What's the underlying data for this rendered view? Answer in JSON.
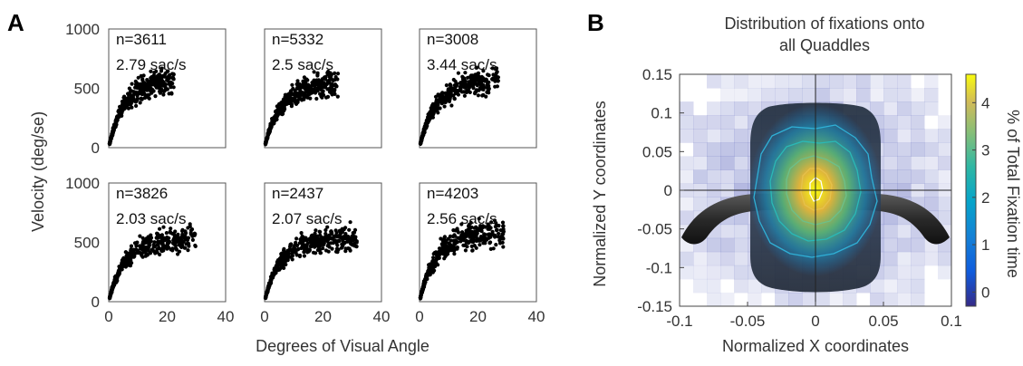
{
  "panel_labels": {
    "a": "A",
    "b": "B"
  },
  "panel_a": {
    "ylabel": "Velocity (deg/se)",
    "xlabel": "Degrees of Visual Angle",
    "y_ticks": [
      "0",
      "500",
      "1000"
    ],
    "x_ticks": [
      "0",
      "20",
      "40"
    ]
  },
  "panel_b": {
    "title_line1": "Distribution of fixations onto",
    "title_line2": "all Quaddles",
    "xlabel": "Normalized X coordinates",
    "ylabel": "Normalized Y coordinates",
    "colorbar_label": "% of  Total Fixation time",
    "x_ticks": [
      "-0.1",
      "-0.05",
      "0",
      "0.05",
      "0.1"
    ],
    "y_ticks": [
      "0.15",
      "0.1",
      "0.05",
      "0",
      "-0.05",
      "-0.1",
      "-0.15"
    ],
    "colorbar_ticks": [
      "0",
      "1",
      "2",
      "3",
      "4"
    ]
  },
  "chart_data": [
    {
      "type": "scatter",
      "title": "",
      "xlabel": "Degrees of Visual Angle",
      "ylabel": "Velocity (deg/se)",
      "xlim": [
        0,
        40
      ],
      "ylim": [
        0,
        1000
      ],
      "subplots": [
        {
          "n_label": "n=3611",
          "rate_label": "2.79 sac/s",
          "n": 3611,
          "rate": 2.79,
          "max_x": 24,
          "vmax": 520,
          "color": "#000000"
        },
        {
          "n_label": "n=5332",
          "rate_label": "2.5 sac/s",
          "n": 5332,
          "rate": 2.5,
          "max_x": 27,
          "vmax": 480,
          "color": "#000000"
        },
        {
          "n_label": "n=3008",
          "rate_label": "3.44 sac/s",
          "n": 3008,
          "rate": 3.44,
          "max_x": 29,
          "vmax": 500,
          "color": "#000000"
        },
        {
          "n_label": "n=3826",
          "rate_label": "2.03 sac/s",
          "n": 3826,
          "rate": 2.03,
          "max_x": 32,
          "vmax": 470,
          "color": "#000000"
        },
        {
          "n_label": "n=2437",
          "rate_label": "2.07 sac/s",
          "n": 2437,
          "rate": 2.07,
          "max_x": 34,
          "vmax": 470,
          "color": "#000000"
        },
        {
          "n_label": "n=4203",
          "rate_label": "2.56 sac/s",
          "n": 4203,
          "rate": 2.56,
          "max_x": 31,
          "vmax": 520,
          "color": "#000000"
        }
      ]
    },
    {
      "type": "heatmap",
      "title": "Distribution of fixations onto all Quaddles",
      "xlabel": "Normalized X coordinates",
      "ylabel": "Normalized Y coordinates",
      "xlim": [
        -0.1,
        0.1
      ],
      "ylim": [
        -0.15,
        0.15
      ],
      "colorbar": {
        "label": "% of  Total Fixation time",
        "range": [
          -0.3,
          4.6
        ],
        "colormap": "parula"
      },
      "peak": {
        "x": 0,
        "y": 0,
        "value": 4.4
      },
      "contour_levels": [
        0.5,
        1.5,
        2.5,
        3.5,
        4.2
      ],
      "grid": true
    }
  ]
}
